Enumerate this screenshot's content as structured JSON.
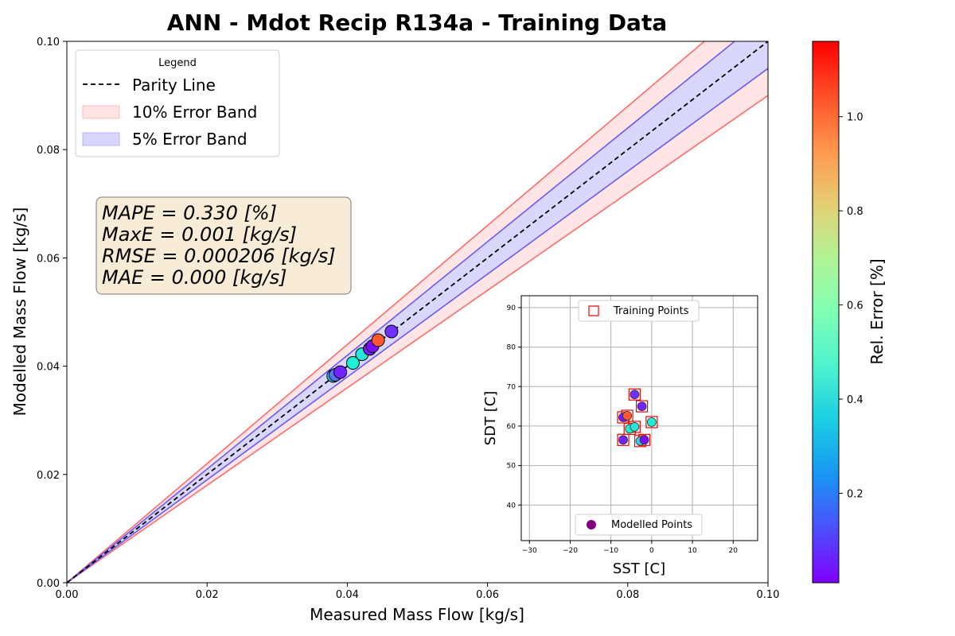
{
  "chart_data": [
    {
      "type": "scatter",
      "title": "ANN - Mdot Recip R134a - Training Data",
      "xlabel": "Measured Mass Flow [kg/s]",
      "ylabel": "Modelled Mass Flow [kg/s]",
      "xlim": [
        0.0,
        0.1
      ],
      "ylim": [
        0.0,
        0.1
      ],
      "xticks": [
        "0.00",
        "0.02",
        "0.04",
        "0.06",
        "0.08",
        "0.10"
      ],
      "yticks": [
        "0.00",
        "0.02",
        "0.04",
        "0.06",
        "0.08",
        "0.10"
      ],
      "grid": false,
      "legend": {
        "title": "Legend",
        "placement": "top-left",
        "entries": [
          "Parity Line",
          "10% Error Band",
          "5% Error Band"
        ]
      },
      "bands": [
        {
          "name": "10% Error Band",
          "fraction": 0.1,
          "color": "#ff6b6b",
          "fill": "#ffe4e4"
        },
        {
          "name": "5% Error Band",
          "fraction": 0.05,
          "color": "#6a5af0",
          "fill": "#d8d6ff"
        }
      ],
      "parity_line": {
        "name": "Parity Line",
        "x": [
          0.0,
          0.1
        ],
        "y": [
          0.0,
          0.1
        ]
      },
      "stats_box": [
        "MAPE = 0.330 [%]",
        "MaxE = 0.001 [kg/s]",
        "RMSE = 0.000206 [kg/s]",
        "MAE = 0.000 [kg/s]"
      ],
      "points": [
        {
          "x": 0.038,
          "y": 0.0382,
          "error": 0.35
        },
        {
          "x": 0.0383,
          "y": 0.0384,
          "error": 0.18
        },
        {
          "x": 0.039,
          "y": 0.0389,
          "error": 0.06
        },
        {
          "x": 0.0408,
          "y": 0.0406,
          "error": 0.45
        },
        {
          "x": 0.0421,
          "y": 0.0422,
          "error": 0.42
        },
        {
          "x": 0.0432,
          "y": 0.0432,
          "error": 0.05
        },
        {
          "x": 0.0436,
          "y": 0.0437,
          "error": 0.03
        },
        {
          "x": 0.0444,
          "y": 0.0448,
          "error": 1.03
        },
        {
          "x": 0.0463,
          "y": 0.0464,
          "error": 0.08
        }
      ]
    },
    {
      "type": "scatter",
      "xlabel": "SST [C]",
      "ylabel": "SDT [C]",
      "xlim": [
        -32,
        26
      ],
      "ylim": [
        31,
        93
      ],
      "xticks": [
        "−30",
        "−20",
        "−10",
        "0",
        "10",
        "20"
      ],
      "yticks": [
        "40",
        "50",
        "60",
        "70",
        "80",
        "90"
      ],
      "grid": true,
      "legend_top": "Training Points",
      "legend_bottom": "Modelled Points",
      "training_points": [
        {
          "x": -4.2,
          "y": 68.0
        },
        {
          "x": -2.4,
          "y": 65.0
        },
        {
          "x": -7.0,
          "y": 62.2
        },
        {
          "x": -6.0,
          "y": 62.6
        },
        {
          "x": -5.4,
          "y": 59.3
        },
        {
          "x": -4.2,
          "y": 59.8
        },
        {
          "x": 0.0,
          "y": 61.0
        },
        {
          "x": -7.0,
          "y": 56.5
        },
        {
          "x": -2.8,
          "y": 56.2
        },
        {
          "x": -1.8,
          "y": 56.5
        }
      ],
      "modelled_points": [
        {
          "x": -4.2,
          "y": 68.0,
          "error": 0.08
        },
        {
          "x": -2.4,
          "y": 65.0,
          "error": 0.06
        },
        {
          "x": -7.0,
          "y": 62.2,
          "error": 0.05
        },
        {
          "x": -6.0,
          "y": 62.6,
          "error": 1.03
        },
        {
          "x": -5.4,
          "y": 59.3,
          "error": 0.45
        },
        {
          "x": -4.2,
          "y": 59.8,
          "error": 0.42
        },
        {
          "x": 0.0,
          "y": 61.0,
          "error": 0.45
        },
        {
          "x": -7.0,
          "y": 56.5,
          "error": 0.06
        },
        {
          "x": -2.8,
          "y": 56.2,
          "error": 0.35
        },
        {
          "x": -1.8,
          "y": 56.5,
          "error": 0.03
        }
      ]
    }
  ],
  "colorbar": {
    "label": "Rel. Error [%]",
    "range": [
      0.01,
      1.16
    ],
    "ticks": [
      "0.2",
      "0.4",
      "0.6",
      "0.8",
      "1.0"
    ],
    "tick_values": [
      0.2,
      0.4,
      0.6,
      0.8,
      1.0
    ],
    "colormap": "rainbow"
  }
}
